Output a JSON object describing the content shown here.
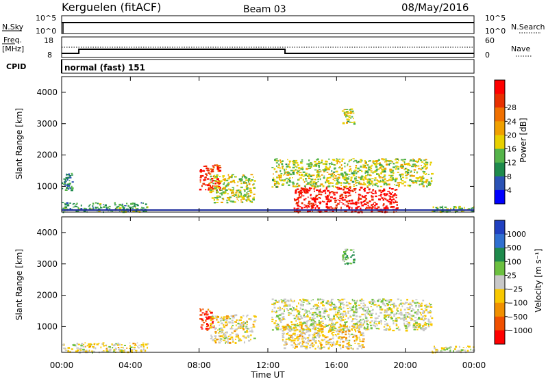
{
  "header": {
    "station": "Kerguelen (fitACF)",
    "beam": "Beam 03",
    "date": "08/May/2016"
  },
  "panels": {
    "nsky": {
      "left_label": "N.Sky",
      "right_label": "N.Search",
      "left_ticks": [
        "10^5",
        "10^0"
      ],
      "right_ticks": [
        "10^5",
        "10^0"
      ]
    },
    "freq": {
      "left_label_top": "Freq.",
      "left_label_unit": "[MHz]",
      "left_ticks": [
        "18",
        "8"
      ],
      "right_label": "Nave",
      "right_ticks": [
        "60",
        "0"
      ]
    },
    "cpid": {
      "label": "CPID",
      "text": "normal (fast) 151"
    }
  },
  "xaxis": {
    "title": "Time UT",
    "ticks": [
      "00:00",
      "04:00",
      "08:00",
      "12:00",
      "16:00",
      "20:00",
      "00:00"
    ]
  },
  "power_panel": {
    "ylabel": "Slant Range [km]",
    "yticks": [
      "1000",
      "2000",
      "3000",
      "4000"
    ],
    "colorbar_label": "Power [dB]",
    "colorbar_ticks": [
      "4",
      "8",
      "12",
      "16",
      "20",
      "24",
      "28"
    ],
    "colors": [
      "#0000ff",
      "#2a52b5",
      "#1e8a4c",
      "#55b44a",
      "#e8d000",
      "#f0a000",
      "#f07000",
      "#e83000",
      "#ff0000"
    ]
  },
  "velocity_panel": {
    "ylabel": "Slant Range [km]",
    "yticks": [
      "1000",
      "2000",
      "3000",
      "4000"
    ],
    "colorbar_label": "Velocity [m s⁻¹]",
    "colorbar_ticks": [
      "1000",
      "500",
      "100",
      "25",
      "−25",
      "−100",
      "−500",
      "−1000"
    ],
    "colors": [
      "#2040c0",
      "#2f6fd0",
      "#1e8a4c",
      "#6cc040",
      "#c8c8c8",
      "#f8c800",
      "#f09000",
      "#f05000",
      "#ff0000"
    ]
  },
  "chart_data": {
    "type": "heatmap",
    "title": "Kerguelen (fitACF) Beam 03 08/May/2016",
    "xlabel": "Time UT",
    "ylabel": "Slant Range [km]",
    "xlim": [
      0,
      24
    ],
    "ylim": [
      180,
      4500
    ],
    "grid": false,
    "series": [
      {
        "name": "Power [dB]",
        "range": [
          0,
          30
        ],
        "regions": [
          {
            "t0": 0.0,
            "t1": 0.6,
            "r0": 900,
            "r1": 1500,
            "value": 8
          },
          {
            "t0": 0.0,
            "t1": 5.0,
            "r0": 200,
            "r1": 500,
            "value": 10
          },
          {
            "t0": 8.0,
            "t1": 9.2,
            "r0": 900,
            "r1": 1700,
            "value": 26
          },
          {
            "t0": 8.6,
            "t1": 11.2,
            "r0": 500,
            "r1": 1400,
            "value": 14
          },
          {
            "t0": 12.2,
            "t1": 21.5,
            "r0": 1000,
            "r1": 1900,
            "value": 14
          },
          {
            "t0": 13.5,
            "t1": 19.5,
            "r0": 200,
            "r1": 1000,
            "value": 28
          },
          {
            "t0": 16.3,
            "t1": 17.0,
            "r0": 3000,
            "r1": 3500,
            "value": 14
          },
          {
            "t0": 21.5,
            "t1": 24.0,
            "r0": 200,
            "r1": 400,
            "value": 12
          }
        ]
      },
      {
        "name": "Velocity [m s⁻¹]",
        "range": [
          -1000,
          1000
        ],
        "regions": [
          {
            "t0": 0.0,
            "t1": 5.0,
            "r0": 200,
            "r1": 500,
            "value": -100
          },
          {
            "t0": 8.0,
            "t1": 8.8,
            "r0": 900,
            "r1": 1600,
            "value": -800
          },
          {
            "t0": 8.6,
            "t1": 11.2,
            "r0": 500,
            "r1": 1400,
            "value": -100
          },
          {
            "t0": 12.2,
            "t1": 21.5,
            "r0": 900,
            "r1": 1900,
            "value": 0
          },
          {
            "t0": 12.8,
            "t1": 17.5,
            "r0": 300,
            "r1": 1100,
            "value": -150
          },
          {
            "t0": 16.3,
            "t1": 17.0,
            "r0": 3000,
            "r1": 3500,
            "value": 300
          },
          {
            "t0": 21.5,
            "t1": 24.0,
            "r0": 200,
            "r1": 400,
            "value": -50
          }
        ]
      }
    ],
    "frequency_MHz": [
      {
        "t0": 0.0,
        "t1": 1.0,
        "value": 10
      },
      {
        "t0": 1.0,
        "t1": 13.0,
        "value": 12
      },
      {
        "t0": 13.0,
        "t1": 24.0,
        "value": 10
      }
    ]
  }
}
